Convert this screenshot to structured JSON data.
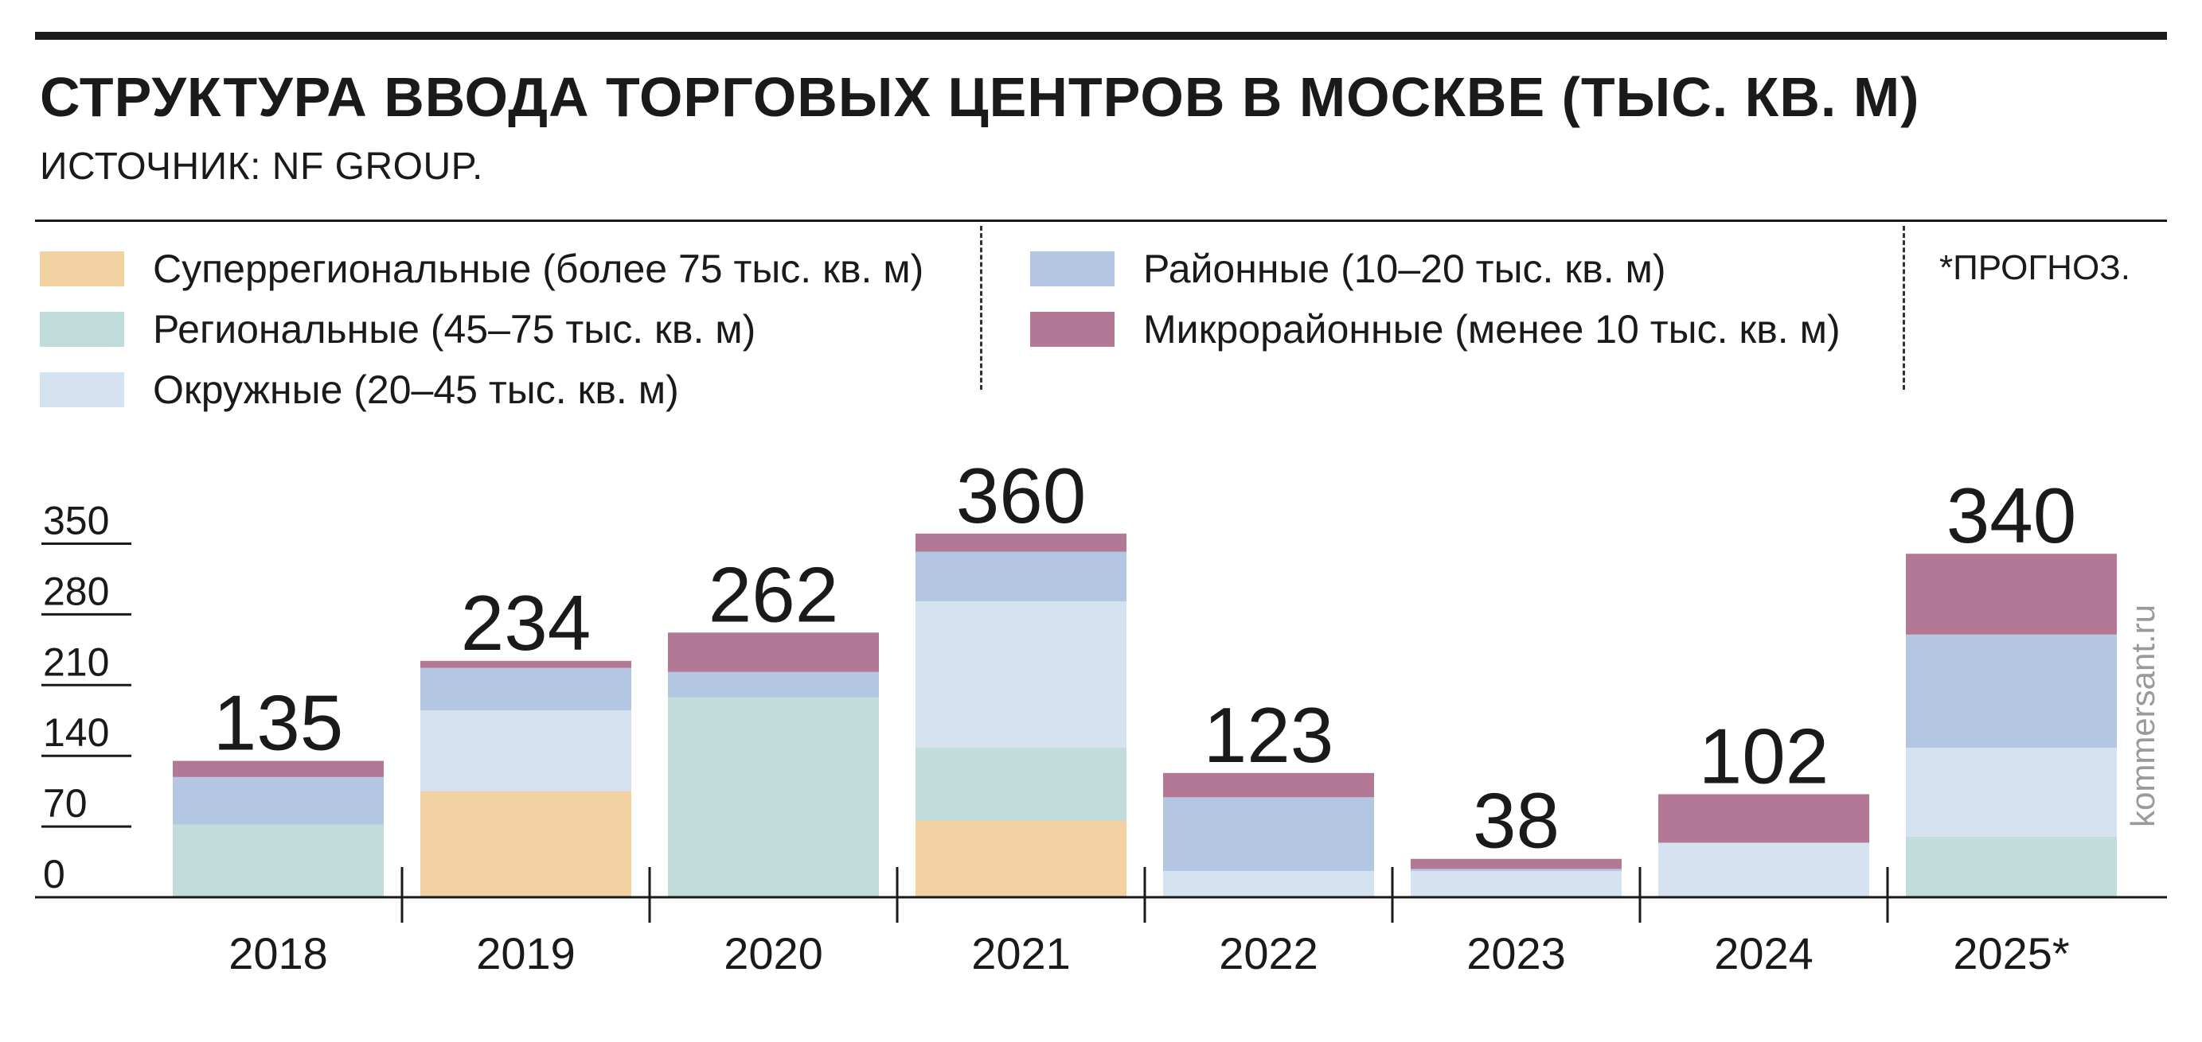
{
  "header": {
    "title": "СТРУКТУРА ВВОДА ТОРГОВЫХ ЦЕНТРОВ В МОСКВЕ (ТЫС. КВ. М)",
    "source": "ИСТОЧНИК: NF GROUP."
  },
  "note": "*ПРОГНОЗ.",
  "watermark": "kommersant.ru",
  "colors": {
    "superregional": "#f2d2a2",
    "regional": "#c0dcdb",
    "district": "#d5e2ef",
    "raion": "#b3c7e2",
    "micro": "#b37896",
    "axis": "#1a1a1a"
  },
  "chart_data": {
    "type": "bar",
    "stacked": true,
    "categories": [
      "2018",
      "2019",
      "2020",
      "2021",
      "2022",
      "2023",
      "2024",
      "2025*"
    ],
    "totals": [
      135,
      234,
      262,
      360,
      123,
      38,
      102,
      340
    ],
    "series": [
      {
        "name": "Суперрегиональные (более 75 тыс. кв. м)",
        "color": "#f2d2a2",
        "values": [
          0,
          105,
          0,
          76,
          0,
          0,
          0,
          0
        ]
      },
      {
        "name": "Региональные (45–75 тыс. кв. м)",
        "color": "#c0dcdb",
        "values": [
          72,
          0,
          198,
          72,
          0,
          0,
          0,
          60
        ]
      },
      {
        "name": "Окружные (20–45 тыс. кв. м)",
        "color": "#d5e2ef",
        "values": [
          0,
          80,
          0,
          145,
          26,
          26,
          54,
          88
        ]
      },
      {
        "name": "Районные (10–20 тыс. кв. м)",
        "color": "#b3c7e2",
        "values": [
          47,
          42,
          25,
          49,
          73,
          2,
          0,
          112
        ]
      },
      {
        "name": "Микрорайонные (менее 10 тыс. кв. м)",
        "color": "#b37896",
        "values": [
          16,
          7,
          39,
          18,
          24,
          10,
          48,
          80
        ]
      }
    ],
    "yticks": [
      0,
      70,
      140,
      210,
      280,
      350
    ],
    "ylim": [
      0,
      350
    ]
  }
}
